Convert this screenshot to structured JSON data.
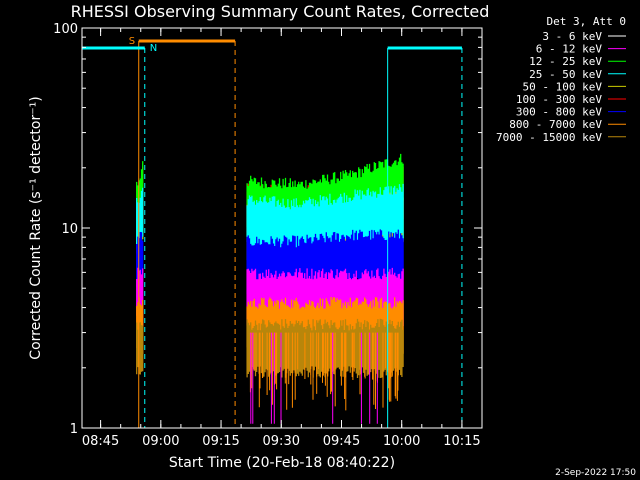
{
  "chart_data": {
    "type": "line",
    "title": "RHESSI Observing Summary Count Rates, Corrected",
    "xlabel": "Start Time (20-Feb-18 08:40:22)",
    "ylabel": "Corrected Count Rate (s⁻¹ detector⁻¹)",
    "yscale": "log",
    "ylim": [
      1,
      100
    ],
    "xlim": [
      "08:40:22",
      "10:20:00"
    ],
    "yticks": [
      "1",
      "10",
      "100"
    ],
    "xticks": [
      "08:45",
      "09:00",
      "09:15",
      "09:30",
      "09:45",
      "10:00",
      "10:15"
    ],
    "legend_title": "Det 3, Att 0",
    "legend_position": "top-right",
    "footer_date": "2-Sep-2022 17:50",
    "flag_labels": {
      "saa": "S",
      "night": "N"
    },
    "series": [
      {
        "name": "3 - 6 keV",
        "color": "#ffffff"
      },
      {
        "name": "6 - 12 keV",
        "color": "#ff00ff"
      },
      {
        "name": "12 - 25 keV",
        "color": "#00ff00"
      },
      {
        "name": "25 - 50 keV",
        "color": "#00ffff"
      },
      {
        "name": "50 - 100 keV",
        "color": "#cccc00"
      },
      {
        "name": "100 - 300 keV",
        "color": "#ff0000"
      },
      {
        "name": "300 - 800 keV",
        "color": "#0000ff"
      },
      {
        "name": "800 - 7000 keV",
        "color": "#ff8c00"
      },
      {
        "name": "7000 - 15000 keV",
        "color": "#b8860b"
      }
    ],
    "data_intervals": [
      [
        "08:54:00",
        "08:55:30"
      ],
      [
        "09:21:30",
        "10:00:30"
      ]
    ],
    "band_levels": [
      {
        "series": "100 - 300 keV",
        "levels": [
          12,
          11.5,
          12.5,
          15
        ]
      },
      {
        "series": "12 - 25 keV",
        "levels": [
          13,
          12.5,
          14,
          17
        ]
      },
      {
        "series": "50 - 100 keV",
        "levels": [
          9.5,
          9,
          10,
          11
        ]
      },
      {
        "series": "25 - 50 keV",
        "levels": [
          10.5,
          10,
          11,
          12
        ]
      },
      {
        "series": "300 - 800 keV",
        "levels": [
          6.5,
          6.5,
          7,
          7
        ]
      },
      {
        "series": "6 - 12 keV",
        "levels": [
          4.5,
          4.5,
          4.5,
          4.5
        ]
      },
      {
        "series": "800 - 7000 keV",
        "levels": [
          3.2,
          3.2,
          3.2,
          3.2
        ]
      },
      {
        "series": "7000 - 15000 keV",
        "levels": [
          2.5,
          2.5,
          2.5,
          2.5
        ]
      }
    ],
    "saa_interval": [
      "08:54:30",
      "09:18:30"
    ],
    "night_intervals": [
      [
        "08:40:22",
        "08:56:00"
      ],
      [
        "09:56:30",
        "10:15:00"
      ]
    ]
  }
}
